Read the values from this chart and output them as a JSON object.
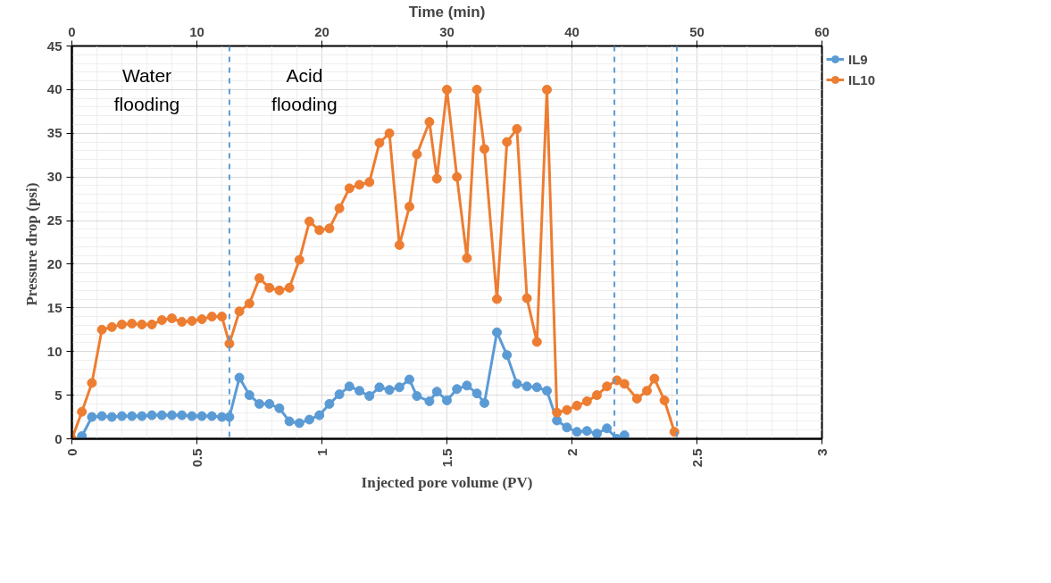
{
  "chart_data": {
    "type": "line",
    "xlabel": "Injected pore volume (PV)",
    "ylabel": "Pressure drop  (psi)",
    "x2label": "Time (min)",
    "xlim": [
      0,
      3
    ],
    "xticks": [
      0,
      0.5,
      1,
      1.5,
      2,
      2.5,
      3
    ],
    "x2lim": [
      0,
      60
    ],
    "x2ticks": [
      0,
      10,
      20,
      30,
      40,
      50,
      60
    ],
    "ylim": [
      0,
      45
    ],
    "yticks": [
      0,
      5,
      10,
      15,
      20,
      25,
      30,
      35,
      40,
      45
    ],
    "grid": true,
    "legend": "right",
    "marker": "circle",
    "line_style": "solid",
    "annotations": [
      "Water flooding",
      "Acid flooding"
    ],
    "ref_lines": [
      {
        "axis": "x",
        "value": 0.63,
        "label": null,
        "color": "#5b9bd5",
        "line_style": "dashed"
      },
      {
        "axis": "x",
        "value": 2.17,
        "label": null,
        "color": "#5b9bd5",
        "line_style": "dashed"
      },
      {
        "axis": "x",
        "value": 2.42,
        "label": null,
        "color": "#5b9bd5",
        "line_style": "dashed"
      }
    ],
    "series": [
      {
        "name": "IL9",
        "color": "#5b9bd5",
        "x": [
          0.04,
          0.08,
          0.12,
          0.16,
          0.2,
          0.24,
          0.28,
          0.32,
          0.36,
          0.4,
          0.44,
          0.48,
          0.52,
          0.56,
          0.6,
          0.63,
          0.67,
          0.71,
          0.75,
          0.79,
          0.83,
          0.87,
          0.91,
          0.95,
          0.99,
          1.03,
          1.07,
          1.11,
          1.15,
          1.19,
          1.23,
          1.27,
          1.31,
          1.35,
          1.38,
          1.43,
          1.46,
          1.5,
          1.54,
          1.58,
          1.62,
          1.65,
          1.7,
          1.74,
          1.78,
          1.82,
          1.86,
          1.9,
          1.94,
          1.98,
          2.02,
          2.06,
          2.1,
          2.14,
          2.18,
          2.21
        ],
        "values": [
          0.3,
          2.5,
          2.6,
          2.5,
          2.6,
          2.6,
          2.6,
          2.7,
          2.7,
          2.7,
          2.7,
          2.6,
          2.6,
          2.6,
          2.5,
          2.5,
          7.0,
          5.0,
          4.0,
          4.0,
          3.5,
          2.0,
          1.8,
          2.2,
          2.7,
          4.0,
          5.1,
          6.0,
          5.5,
          4.9,
          5.9,
          5.6,
          5.9,
          6.8,
          4.9,
          4.3,
          5.4,
          4.4,
          5.7,
          6.1,
          5.2,
          4.1,
          12.2,
          9.6,
          6.3,
          6.0,
          5.9,
          5.5,
          2.1,
          1.3,
          0.8,
          0.9,
          0.6,
          1.2,
          0.0,
          0.4
        ]
      },
      {
        "name": "IL10",
        "color": "#ed7d31",
        "x": [
          0,
          0.04,
          0.08,
          0.12,
          0.16,
          0.2,
          0.24,
          0.28,
          0.32,
          0.36,
          0.4,
          0.44,
          0.48,
          0.52,
          0.56,
          0.6,
          0.63,
          0.67,
          0.71,
          0.75,
          0.79,
          0.83,
          0.87,
          0.91,
          0.95,
          0.99,
          1.03,
          1.07,
          1.11,
          1.15,
          1.19,
          1.23,
          1.27,
          1.31,
          1.35,
          1.38,
          1.43,
          1.46,
          1.5,
          1.54,
          1.58,
          1.62,
          1.65,
          1.7,
          1.74,
          1.78,
          1.82,
          1.86,
          1.9,
          1.94,
          1.98,
          2.02,
          2.06,
          2.1,
          2.14,
          2.18,
          2.21,
          2.26,
          2.3,
          2.33,
          2.37,
          2.41
        ],
        "values": [
          0,
          3.1,
          6.4,
          12.5,
          12.8,
          13.1,
          13.2,
          13.1,
          13.1,
          13.6,
          13.8,
          13.4,
          13.5,
          13.7,
          14.0,
          14.0,
          10.9,
          14.6,
          15.5,
          18.4,
          17.3,
          17.0,
          17.3,
          20.5,
          24.9,
          23.9,
          24.1,
          26.4,
          28.7,
          29.1,
          29.4,
          33.9,
          35.0,
          22.2,
          26.6,
          32.6,
          36.3,
          29.8,
          40,
          30.0,
          20.7,
          40,
          33.2,
          16.0,
          34.0,
          35.5,
          16.1,
          11.1,
          40,
          3.0,
          3.3,
          3.8,
          4.3,
          5.0,
          6.0,
          6.7,
          6.3,
          4.6,
          5.5,
          6.9,
          4.4,
          0.8
        ]
      }
    ]
  }
}
